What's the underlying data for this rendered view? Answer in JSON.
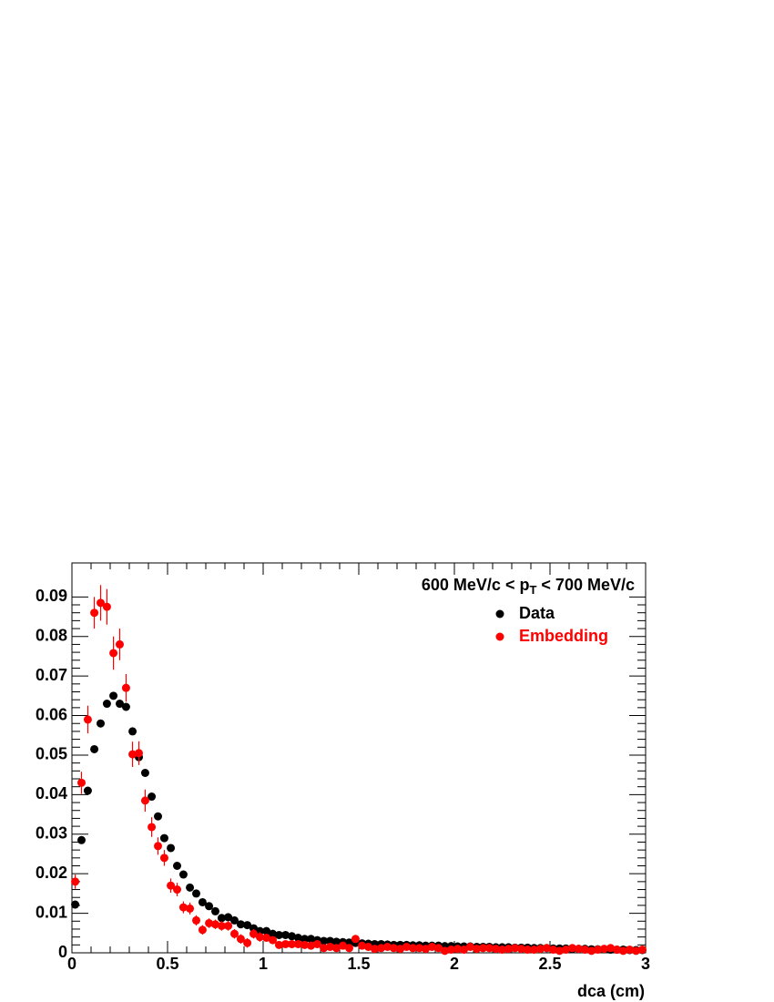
{
  "chart_data": {
    "type": "scatter",
    "title_parts": [
      "600 MeV/c < p",
      "T",
      " < 700 MeV/c"
    ],
    "x_label": "dca (cm)",
    "x": [
      0.017,
      0.05,
      0.083,
      0.117,
      0.15,
      0.183,
      0.217,
      0.25,
      0.283,
      0.317,
      0.35,
      0.383,
      0.417,
      0.45,
      0.483,
      0.517,
      0.55,
      0.583,
      0.617,
      0.65,
      0.683,
      0.717,
      0.75,
      0.783,
      0.817,
      0.85,
      0.883,
      0.917,
      0.95,
      0.983,
      1.017,
      1.05,
      1.083,
      1.117,
      1.15,
      1.183,
      1.217,
      1.25,
      1.283,
      1.317,
      1.35,
      1.383,
      1.417,
      1.45,
      1.483,
      1.517,
      1.55,
      1.583,
      1.617,
      1.65,
      1.683,
      1.717,
      1.75,
      1.783,
      1.817,
      1.85,
      1.883,
      1.917,
      1.95,
      1.983,
      2.017,
      2.05,
      2.083,
      2.117,
      2.15,
      2.183,
      2.217,
      2.25,
      2.283,
      2.317,
      2.35,
      2.383,
      2.417,
      2.45,
      2.483,
      2.517,
      2.55,
      2.583,
      2.617,
      2.65,
      2.683,
      2.717,
      2.75,
      2.783,
      2.817,
      2.85,
      2.883,
      2.917,
      2.95,
      2.983
    ],
    "series": [
      {
        "name": "Data",
        "color": "#000000",
        "values": [
          0.0122,
          0.0285,
          0.041,
          0.0515,
          0.058,
          0.063,
          0.065,
          0.063,
          0.0622,
          0.056,
          0.0495,
          0.0455,
          0.0395,
          0.0345,
          0.029,
          0.0265,
          0.022,
          0.0198,
          0.0165,
          0.015,
          0.0128,
          0.0118,
          0.0105,
          0.0088,
          0.009,
          0.0082,
          0.0072,
          0.007,
          0.0062,
          0.0055,
          0.0055,
          0.0048,
          0.0045,
          0.0045,
          0.0042,
          0.0038,
          0.0035,
          0.0035,
          0.0032,
          0.003,
          0.003,
          0.0028,
          0.0027,
          0.0026,
          0.0025,
          0.0024,
          0.0023,
          0.0022,
          0.0022,
          0.0021,
          0.002,
          0.002,
          0.002,
          0.0019,
          0.0019,
          0.0018,
          0.0018,
          0.0018,
          0.0017,
          0.0017,
          0.0016,
          0.0016,
          0.0016,
          0.0015,
          0.0015,
          0.0015,
          0.0014,
          0.0014,
          0.0014,
          0.0013,
          0.0013,
          0.0013,
          0.0012,
          0.0012,
          0.0012,
          0.0011,
          0.0011,
          0.0011,
          0.001,
          0.001,
          0.001,
          0.0009,
          0.0009,
          0.0009,
          0.0008,
          0.0008,
          0.0008,
          0.0007,
          0.0007,
          0.0007
        ]
      },
      {
        "name": "Embedding",
        "color": "#ff0000",
        "values": [
          0.018,
          0.043,
          0.059,
          0.086,
          0.0885,
          0.0875,
          0.0758,
          0.078,
          0.067,
          0.0502,
          0.0505,
          0.0385,
          0.0318,
          0.027,
          0.024,
          0.017,
          0.016,
          0.0115,
          0.0112,
          0.0082,
          0.0058,
          0.0075,
          0.0072,
          0.0068,
          0.0068,
          0.0048,
          0.0035,
          0.0025,
          0.0048,
          0.004,
          0.0038,
          0.0032,
          0.002,
          0.0022,
          0.0022,
          0.0022,
          0.002,
          0.0018,
          0.0022,
          0.0012,
          0.0015,
          0.0012,
          0.0018,
          0.0012,
          0.0035,
          0.0018,
          0.0015,
          0.001,
          0.0012,
          0.0015,
          0.0012,
          0.001,
          0.0015,
          0.0012,
          0.0012,
          0.001,
          0.0015,
          0.0012,
          0.0005,
          0.0008,
          0.001,
          0.0008,
          0.0015,
          0.001,
          0.0012,
          0.0012,
          0.001,
          0.0008,
          0.001,
          0.0012,
          0.001,
          0.0008,
          0.0008,
          0.001,
          0.0012,
          0.0008,
          0.0005,
          0.0008,
          0.0012,
          0.001,
          0.0008,
          0.0005,
          0.0008,
          0.001,
          0.0012,
          0.0008,
          0.0005,
          0.0008,
          0.0005,
          0.0008
        ],
        "errors": [
          0.0018,
          0.0028,
          0.0035,
          0.004,
          0.0045,
          0.0045,
          0.0042,
          0.004,
          0.0035,
          0.0032,
          0.003,
          0.0028,
          0.0025,
          0.0022,
          0.002,
          0.0018,
          0.0017,
          0.0015,
          0.0015,
          0.0013,
          0.0012,
          0.0012,
          0.0012,
          0.0012,
          0.0012,
          0.0012,
          0.0012,
          0.0012,
          0.0012,
          0.0012,
          0.0008,
          0.0008,
          0.0008,
          0.0008,
          0.0008,
          0.0008,
          0.0008,
          0.0008,
          0.0008,
          0.0008,
          0.0008,
          0.0008,
          0.0008,
          0.0008,
          0.0008,
          0.0008,
          0.0008,
          0.0008,
          0.0008,
          0.0008,
          0.0008,
          0.0008,
          0.0008,
          0.0008,
          0.0008,
          0.0008,
          0.0008,
          0.0008,
          0.0008,
          0.0008,
          0.0008,
          0.0008,
          0.0008,
          0.0008,
          0.0008,
          0.0008,
          0.0008,
          0.0008,
          0.0008,
          0.0008,
          0.0008,
          0.0008,
          0.0008,
          0.0008,
          0.0008,
          0.0008,
          0.0008,
          0.0008,
          0.0008,
          0.0008,
          0.0008,
          0.0008,
          0.0008,
          0.0008,
          0.0008,
          0.0008,
          0.0008,
          0.0008,
          0.0008,
          0.0008
        ]
      }
    ],
    "xlim": [
      0,
      3
    ],
    "xticks": [
      0,
      0.5,
      1,
      1.5,
      2,
      2.5,
      3
    ],
    "ylim": [
      0,
      0.0986
    ],
    "yticks": [
      0,
      0.01,
      0.02,
      0.03,
      0.04,
      0.05,
      0.06,
      0.07,
      0.08,
      0.09
    ],
    "legend": "top right"
  }
}
